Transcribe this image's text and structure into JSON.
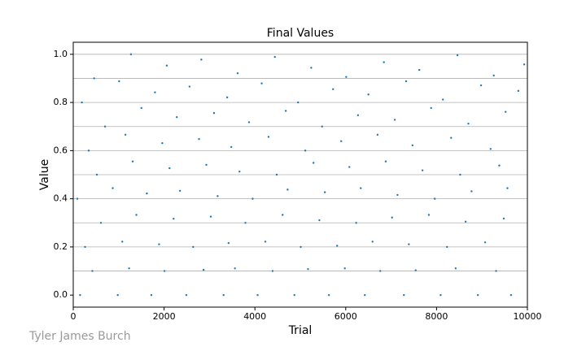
{
  "chart_data": {
    "type": "scatter",
    "title": "Final Values",
    "xlabel": "Trial",
    "ylabel": "Value",
    "watermark": "Tyler James Burch",
    "xlim": [
      0,
      10000
    ],
    "ylim": [
      -0.05,
      1.05
    ],
    "xticks": [
      0,
      2000,
      4000,
      6000,
      8000,
      10000
    ],
    "yticks": [
      {
        "value": 0,
        "label": "0.0"
      },
      0.2,
      0.4,
      0.6,
      0.8,
      {
        "value": 1,
        "label": "1.0"
      }
    ],
    "hlines": [
      0.1,
      0.2,
      0.3,
      0.4,
      0.5,
      0.6,
      0.7,
      0.8,
      0.9,
      1.0
    ],
    "hline_color": "#b0b0b0",
    "series": [
      {
        "color": "#1f77b4",
        "x": [
          150,
          980,
          1720,
          2490,
          3310,
          4060,
          4870,
          5630,
          6420,
          7280,
          8090,
          8910,
          9640,
          420,
          1230,
          2010,
          2870,
          3560,
          4390,
          5170,
          5980,
          6760,
          7540,
          8420,
          9310,
          260,
          1080,
          1890,
          2640,
          3420,
          4230,
          5010,
          5810,
          6590,
          7390,
          8230,
          9070,
          610,
          1390,
          2210,
          3030,
          3790,
          4610,
          5420,
          6230,
          7020,
          7830,
          8640,
          9480,
          90,
          870,
          1620,
          2350,
          3180,
          3950,
          4720,
          5540,
          6330,
          7140,
          7960,
          8770,
          9560,
          520,
          1310,
          2120,
          2930,
          3660,
          4480,
          5290,
          6080,
          6880,
          7690,
          8520,
          9380,
          340,
          1150,
          1960,
          2770,
          3480,
          4300,
          5110,
          5900,
          6700,
          7470,
          8320,
          9190,
          700,
          1500,
          2280,
          3100,
          3870,
          4680,
          5480,
          6270,
          7080,
          7880,
          8700,
          9520,
          190,
          1010,
          1800,
          2560,
          3390,
          4150,
          4950,
          5720,
          6500,
          7330,
          8140,
          8980,
          9800,
          460,
          1270,
          2060,
          2820,
          3620,
          4440,
          5240,
          6010,
          6840,
          7620,
          8460,
          9260,
          9930
        ],
        "values": [
          0,
          0,
          0,
          0,
          0,
          0,
          0,
          0,
          0,
          0,
          0,
          0,
          0,
          0.1,
          0.111,
          0.1,
          0.105,
          0.111,
          0.1,
          0.108,
          0.111,
          0.1,
          0.103,
          0.111,
          0.1,
          0.2,
          0.222,
          0.211,
          0.2,
          0.216,
          0.222,
          0.2,
          0.205,
          0.222,
          0.211,
          0.2,
          0.219,
          0.3,
          0.333,
          0.317,
          0.326,
          0.3,
          0.333,
          0.311,
          0.3,
          0.322,
          0.333,
          0.305,
          0.318,
          0.4,
          0.444,
          0.422,
          0.433,
          0.411,
          0.4,
          0.438,
          0.427,
          0.444,
          0.416,
          0.4,
          0.431,
          0.444,
          0.5,
          0.555,
          0.527,
          0.541,
          0.513,
          0.5,
          0.549,
          0.532,
          0.555,
          0.518,
          0.5,
          0.538,
          0.6,
          0.666,
          0.631,
          0.648,
          0.615,
          0.657,
          0.6,
          0.639,
          0.666,
          0.622,
          0.653,
          0.607,
          0.7,
          0.777,
          0.739,
          0.756,
          0.718,
          0.765,
          0.7,
          0.747,
          0.728,
          0.777,
          0.712,
          0.761,
          0.8,
          0.888,
          0.842,
          0.866,
          0.821,
          0.879,
          0.8,
          0.855,
          0.833,
          0.888,
          0.812,
          0.871,
          0.848,
          0.9,
          1.0,
          0.953,
          0.978,
          0.921,
          0.989,
          0.944,
          0.906,
          0.967,
          0.935,
          0.996,
          0.912,
          0.958
        ]
      }
    ]
  }
}
